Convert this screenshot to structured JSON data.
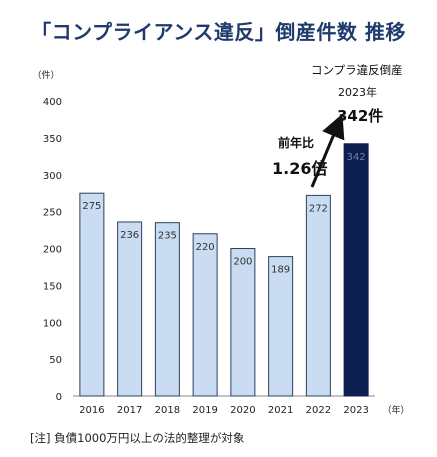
{
  "title": "「コンプライアンス違反」倒産件数 推移",
  "note": "[注] 負債1000万円以上の法的整理が対象",
  "annotations": {
    "highlight_label": "コンプラ違反倒産",
    "highlight_year": "2023年",
    "highlight_value": "342件",
    "yoy_label": "前年比",
    "yoy_value": "1.26倍"
  },
  "colors": {
    "bar": "#c9dcf1",
    "bar_border": "#2e3f5f",
    "highlight_bar": "#0d1f4f",
    "title": "#1f3b6e",
    "arrow": "#111111"
  },
  "chart_data": {
    "type": "bar",
    "categories": [
      "2016",
      "2017",
      "2018",
      "2019",
      "2020",
      "2021",
      "2022",
      "2023"
    ],
    "values": [
      275,
      236,
      235,
      220,
      200,
      189,
      272,
      342
    ],
    "data_labels": [
      "275",
      "236",
      "235",
      "220",
      "200",
      "189",
      "272",
      "342"
    ],
    "highlight_index": 7,
    "y_unit": "（件）",
    "x_unit": "（年）",
    "ylim": [
      0,
      400
    ],
    "yticks": [
      0,
      50,
      100,
      150,
      200,
      250,
      300,
      350,
      400
    ],
    "grid": false,
    "legend": "none"
  }
}
